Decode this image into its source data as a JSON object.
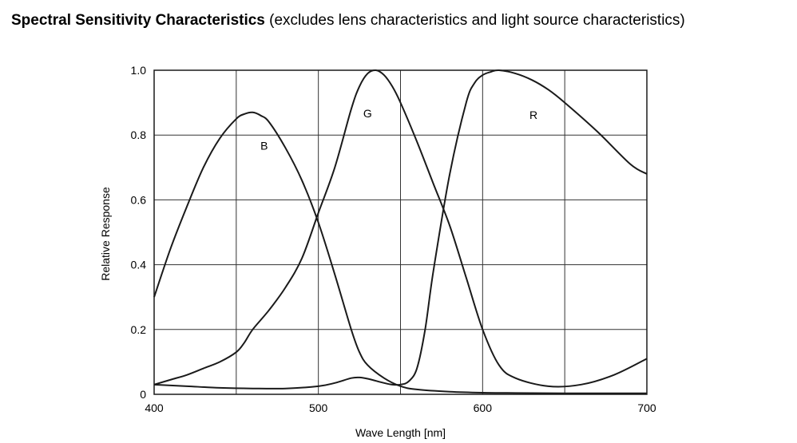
{
  "header": {
    "title": "Spectral Sensitivity Characteristics",
    "subtitle": "(excludes lens characteristics and light source characteristics)"
  },
  "chart_data": {
    "type": "line",
    "title": "Spectral Sensitivity Characteristics",
    "subtitle": "(excludes lens characteristics and light source characteristics)",
    "xlabel": "Wave Length [nm]",
    "ylabel": "Relative Response",
    "xlim": [
      400,
      700
    ],
    "ylim": [
      0,
      1.0
    ],
    "x_ticks": [
      400,
      500,
      600,
      700
    ],
    "x_tick_labels": [
      "400",
      "500",
      "600",
      "700"
    ],
    "y_ticks": [
      0,
      0.2,
      0.4,
      0.6,
      0.8,
      1.0
    ],
    "y_tick_labels": [
      "0",
      "0.2",
      "0.4",
      "0.6",
      "0.8",
      "1.0"
    ],
    "grid_x": [
      450,
      500,
      550,
      600,
      650
    ],
    "grid_y": [
      0.2,
      0.4,
      0.6,
      0.8
    ],
    "grid": true,
    "line_color": "#1a1a1a",
    "series": [
      {
        "name": "B",
        "x": [
          400,
          410,
          420,
          430,
          440,
          450,
          455,
          460,
          465,
          470,
          480,
          490,
          500,
          510,
          520,
          525,
          530,
          540,
          550,
          560,
          580,
          600,
          620,
          650,
          680,
          700
        ],
        "y": [
          0.3,
          0.45,
          0.58,
          0.7,
          0.79,
          0.85,
          0.865,
          0.87,
          0.86,
          0.84,
          0.76,
          0.66,
          0.53,
          0.37,
          0.2,
          0.13,
          0.09,
          0.05,
          0.025,
          0.015,
          0.008,
          0.005,
          0.004,
          0.003,
          0.003,
          0.003
        ]
      },
      {
        "name": "G",
        "x": [
          400,
          410,
          420,
          430,
          440,
          450,
          455,
          460,
          470,
          480,
          490,
          500,
          510,
          520,
          525,
          530,
          535,
          540,
          545,
          550,
          560,
          570,
          580,
          590,
          600,
          610,
          620,
          640,
          660,
          680,
          700
        ],
        "y": [
          0.03,
          0.045,
          0.06,
          0.08,
          0.1,
          0.13,
          0.16,
          0.2,
          0.26,
          0.33,
          0.42,
          0.56,
          0.7,
          0.88,
          0.95,
          0.99,
          1.0,
          0.985,
          0.95,
          0.9,
          0.78,
          0.65,
          0.52,
          0.36,
          0.2,
          0.09,
          0.05,
          0.025,
          0.03,
          0.06,
          0.11
        ]
      },
      {
        "name": "R",
        "x": [
          400,
          420,
          440,
          460,
          480,
          500,
          510,
          520,
          525,
          530,
          540,
          545,
          550,
          555,
          560,
          565,
          570,
          580,
          590,
          595,
          600,
          605,
          610,
          620,
          630,
          640,
          650,
          670,
          690,
          700
        ],
        "y": [
          0.03,
          0.025,
          0.02,
          0.018,
          0.018,
          0.025,
          0.035,
          0.05,
          0.052,
          0.048,
          0.035,
          0.03,
          0.03,
          0.04,
          0.08,
          0.2,
          0.38,
          0.68,
          0.9,
          0.96,
          0.985,
          0.995,
          1.0,
          0.99,
          0.97,
          0.94,
          0.9,
          0.81,
          0.71,
          0.68
        ]
      }
    ],
    "curve_labels": [
      {
        "text": "B",
        "x": 467,
        "y": 0.755
      },
      {
        "text": "G",
        "x": 530,
        "y": 0.855
      },
      {
        "text": "R",
        "x": 631,
        "y": 0.85
      }
    ]
  }
}
